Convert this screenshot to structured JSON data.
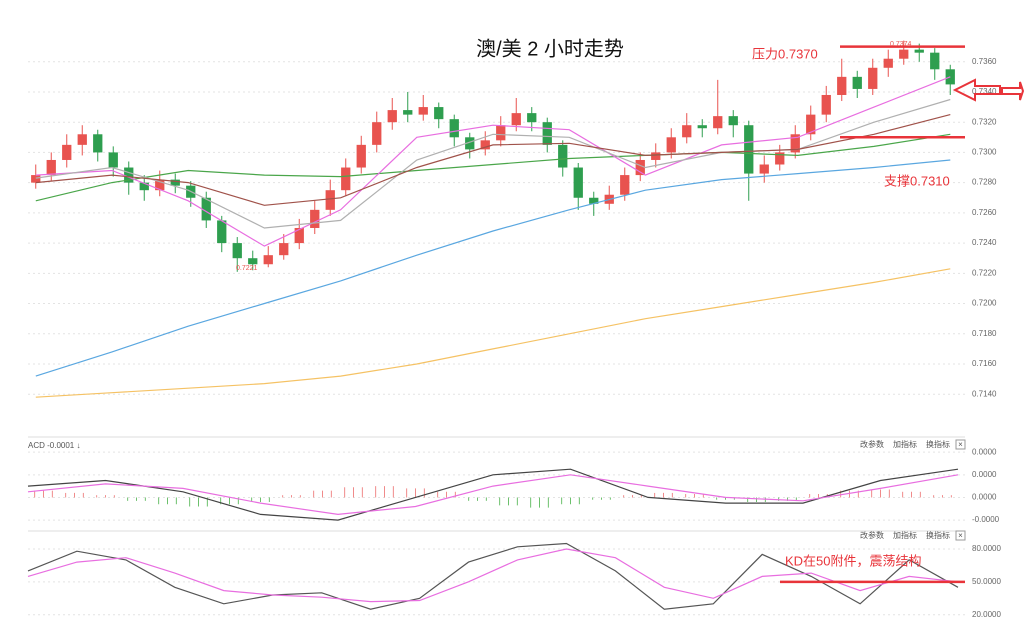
{
  "chart_data": [
    {
      "type": "candlestick",
      "title": "澳/美 2 小时走势",
      "annotations": [
        "压力0.7370",
        "支撑0.7310",
        "0.7374",
        "0.7221"
      ],
      "hlines": [
        {
          "value": 0.737,
          "color": "#e8343a"
        },
        {
          "value": 0.731,
          "color": "#e8343a"
        }
      ],
      "up_color": "#e8534f",
      "down_color": "#2e9e4f",
      "ylim": [
        0.7115,
        0.7381
      ],
      "yticks": [
        {
          "value": 0.714,
          "label": "0.7140"
        },
        {
          "value": 0.716,
          "label": "0.7160"
        },
        {
          "value": 0.718,
          "label": "0.7180"
        },
        {
          "value": 0.72,
          "label": "0.7200"
        },
        {
          "value": 0.722,
          "label": "0.7220"
        },
        {
          "value": 0.724,
          "label": "0.7240"
        },
        {
          "value": 0.726,
          "label": "0.7260"
        },
        {
          "value": 0.728,
          "label": "0.7280"
        },
        {
          "value": 0.73,
          "label": "0.7300"
        },
        {
          "value": 0.732,
          "label": "0.7320"
        },
        {
          "value": 0.734,
          "label": "0.7340"
        },
        {
          "value": 0.736,
          "label": "0.7360"
        }
      ],
      "grid": true,
      "candles": [
        [
          0.728,
          0.7292,
          0.7276,
          0.7285
        ],
        [
          0.7285,
          0.73,
          0.7281,
          0.7295
        ],
        [
          0.7295,
          0.7312,
          0.729,
          0.7305
        ],
        [
          0.7305,
          0.7318,
          0.7298,
          0.7312
        ],
        [
          0.7312,
          0.7315,
          0.7294,
          0.73
        ],
        [
          0.73,
          0.7304,
          0.7284,
          0.729
        ],
        [
          0.729,
          0.7294,
          0.7272,
          0.728
        ],
        [
          0.728,
          0.7285,
          0.7268,
          0.7275
        ],
        [
          0.7275,
          0.7288,
          0.7271,
          0.7282
        ],
        [
          0.7282,
          0.7286,
          0.7273,
          0.7278
        ],
        [
          0.7278,
          0.7281,
          0.7264,
          0.727
        ],
        [
          0.727,
          0.7274,
          0.725,
          0.7255
        ],
        [
          0.7255,
          0.7258,
          0.7234,
          0.724
        ],
        [
          0.724,
          0.7244,
          0.7221,
          0.723
        ],
        [
          0.723,
          0.7235,
          0.7222,
          0.7226
        ],
        [
          0.7226,
          0.7238,
          0.7224,
          0.7232
        ],
        [
          0.7232,
          0.7246,
          0.7229,
          0.724
        ],
        [
          0.724,
          0.7256,
          0.7236,
          0.725
        ],
        [
          0.725,
          0.7268,
          0.7246,
          0.7262
        ],
        [
          0.7262,
          0.7282,
          0.7258,
          0.7275
        ],
        [
          0.7275,
          0.7296,
          0.7271,
          0.729
        ],
        [
          0.729,
          0.7311,
          0.7286,
          0.7305
        ],
        [
          0.7305,
          0.7327,
          0.73,
          0.732
        ],
        [
          0.732,
          0.7336,
          0.7315,
          0.7328
        ],
        [
          0.7328,
          0.734,
          0.732,
          0.7325
        ],
        [
          0.7325,
          0.7338,
          0.7321,
          0.733
        ],
        [
          0.733,
          0.7333,
          0.7316,
          0.7322
        ],
        [
          0.7322,
          0.7325,
          0.7304,
          0.731
        ],
        [
          0.731,
          0.7313,
          0.7296,
          0.7302
        ],
        [
          0.7302,
          0.7314,
          0.7298,
          0.7308
        ],
        [
          0.7308,
          0.7324,
          0.7304,
          0.7318
        ],
        [
          0.7318,
          0.7336,
          0.7314,
          0.7326
        ],
        [
          0.7326,
          0.733,
          0.7314,
          0.732
        ],
        [
          0.732,
          0.7323,
          0.73,
          0.7305
        ],
        [
          0.7305,
          0.7308,
          0.7284,
          0.729
        ],
        [
          0.729,
          0.7293,
          0.7262,
          0.727
        ],
        [
          0.727,
          0.7274,
          0.7258,
          0.7266
        ],
        [
          0.7266,
          0.7278,
          0.7262,
          0.7272
        ],
        [
          0.7272,
          0.729,
          0.7268,
          0.7285
        ],
        [
          0.7285,
          0.73,
          0.7281,
          0.7295
        ],
        [
          0.7295,
          0.7306,
          0.729,
          0.73
        ],
        [
          0.73,
          0.7316,
          0.7296,
          0.731
        ],
        [
          0.731,
          0.7326,
          0.7306,
          0.7318
        ],
        [
          0.7318,
          0.7322,
          0.731,
          0.7316
        ],
        [
          0.7316,
          0.7348,
          0.7312,
          0.7324
        ],
        [
          0.7324,
          0.7328,
          0.731,
          0.7318
        ],
        [
          0.7318,
          0.7321,
          0.7268,
          0.7286
        ],
        [
          0.7286,
          0.7298,
          0.728,
          0.7292
        ],
        [
          0.7292,
          0.7305,
          0.7288,
          0.73
        ],
        [
          0.73,
          0.7318,
          0.7296,
          0.7312
        ],
        [
          0.7312,
          0.7331,
          0.7308,
          0.7325
        ],
        [
          0.7325,
          0.7344,
          0.732,
          0.7338
        ],
        [
          0.7338,
          0.7362,
          0.7334,
          0.735
        ],
        [
          0.735,
          0.7354,
          0.7336,
          0.7342
        ],
        [
          0.7342,
          0.7362,
          0.7338,
          0.7356
        ],
        [
          0.7356,
          0.7368,
          0.735,
          0.7362
        ],
        [
          0.7362,
          0.7374,
          0.7358,
          0.7368
        ],
        [
          0.7368,
          0.7372,
          0.736,
          0.7366
        ],
        [
          0.7366,
          0.7369,
          0.7348,
          0.7355
        ],
        [
          0.7355,
          0.7358,
          0.7338,
          0.7345
        ]
      ],
      "series": [
        {
          "color": "#5aa7e0",
          "values": [
            0.7152,
            0.7168,
            0.7185,
            0.72,
            0.7215,
            0.7232,
            0.7248,
            0.7262,
            0.7275,
            0.7282,
            0.7286,
            0.729,
            0.7295
          ]
        },
        {
          "color": "#f5c264",
          "values": [
            0.7138,
            0.7141,
            0.7144,
            0.7147,
            0.7152,
            0.716,
            0.717,
            0.718,
            0.719,
            0.7198,
            0.7206,
            0.7214,
            0.7223
          ]
        },
        {
          "color": "#4aa64a",
          "values": [
            0.7268,
            0.728,
            0.7288,
            0.7285,
            0.7284,
            0.7288,
            0.7292,
            0.7296,
            0.7298,
            0.73,
            0.7298,
            0.7304,
            0.7312
          ]
        },
        {
          "color": "#e86ee0",
          "values": [
            0.7285,
            0.7288,
            0.7268,
            0.7238,
            0.7262,
            0.731,
            0.7318,
            0.7315,
            0.7285,
            0.7305,
            0.731,
            0.733,
            0.735
          ]
        },
        {
          "color": "#b0b0b0",
          "values": [
            0.7283,
            0.729,
            0.7275,
            0.725,
            0.7255,
            0.7295,
            0.7312,
            0.731,
            0.729,
            0.73,
            0.7302,
            0.732,
            0.7335
          ]
        },
        {
          "color": "#a0524a",
          "values": [
            0.728,
            0.7285,
            0.728,
            0.7265,
            0.727,
            0.729,
            0.7305,
            0.7306,
            0.7298,
            0.73,
            0.7302,
            0.7312,
            0.7325
          ]
        }
      ]
    },
    {
      "type": "macd",
      "header": "ACD -0.0001 ↓",
      "buttons": [
        "改参数",
        "加指标",
        "换指标",
        "×"
      ],
      "ylim": [
        -2.7e-05,
        4.9e-05
      ],
      "yticks": [
        {
          "value": 4e-05,
          "label": "0.0000"
        },
        {
          "value": 2e-05,
          "label": "0.0000"
        },
        {
          "value": 0,
          "label": "0.0000"
        },
        {
          "value": -2e-05,
          "label": "-0.0000"
        }
      ],
      "grid": true,
      "histogram": [
        6e-06,
        4e-06,
        2e-06,
        -3e-06,
        -6e-06,
        -8e-06,
        -6e-06,
        -4e-06,
        2e-06,
        6e-06,
        9e-06,
        1e-05,
        8e-06,
        5e-06,
        -3e-06,
        -7e-06,
        -9e-06,
        -6e-06,
        -2e-06,
        2e-06,
        4e-06,
        3e-06,
        -2e-06,
        -4e-06,
        -3e-06,
        3e-06,
        6e-06,
        7e-06,
        5e-06,
        2e-06
      ],
      "up_color": "#f08a8a",
      "down_color": "#6cc06c",
      "series": [
        {
          "color": "#444444",
          "values": [
            1e-05,
            1.5e-05,
            5e-06,
            -1.5e-05,
            -2e-05,
            0,
            2e-05,
            2.5e-05,
            0,
            -5e-06,
            -5e-06,
            1.5e-05,
            2.5e-05
          ]
        },
        {
          "color": "#e86ee0",
          "values": [
            5e-06,
            1.2e-05,
            8e-06,
            -5e-06,
            -1.5e-05,
            -8e-06,
            1e-05,
            2e-05,
            1e-05,
            0,
            -3e-06,
            8e-06,
            2e-05
          ]
        }
      ]
    },
    {
      "type": "line",
      "buttons": [
        "改参数",
        "加指标",
        "换指标",
        "×"
      ],
      "annotations": [
        "KD在50附件，震荡结构"
      ],
      "hlines": [
        {
          "value": 50,
          "color": "#e8343a"
        }
      ],
      "ylim": [
        17,
        90
      ],
      "yticks": [
        {
          "value": 80,
          "label": "80.0000"
        },
        {
          "value": 50,
          "label": "50.0000"
        },
        {
          "value": 20,
          "label": "20.0000"
        }
      ],
      "grid": true,
      "series": [
        {
          "color": "#555555",
          "values": [
            60,
            78,
            70,
            45,
            30,
            38,
            40,
            25,
            35,
            68,
            82,
            85,
            60,
            25,
            30,
            75,
            55,
            30,
            70,
            45
          ]
        },
        {
          "color": "#e86ee0",
          "values": [
            55,
            68,
            72,
            58,
            42,
            38,
            36,
            32,
            33,
            50,
            70,
            80,
            72,
            45,
            35,
            55,
            58,
            42,
            55,
            50
          ]
        }
      ]
    }
  ]
}
